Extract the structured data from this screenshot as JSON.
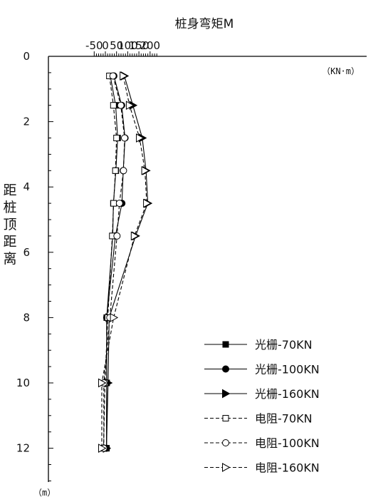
{
  "chart_data": {
    "type": "line",
    "title": "桩身弯矩M",
    "x_unit": "（KN·m）",
    "ylabel": "距桩顶距离",
    "y_unit": "（m）",
    "xlim": [
      -50,
      230
    ],
    "ylim": [
      0,
      13
    ],
    "x_ticks": [
      "-50",
      "0",
      "50",
      "100",
      "150",
      "200"
    ],
    "x_tick_values": [
      -50,
      0,
      50,
      100,
      150,
      200
    ],
    "y_ticks": [
      "0",
      "2",
      "4",
      "6",
      "8",
      "10",
      "12"
    ],
    "y_tick_values": [
      0,
      2,
      4,
      6,
      8,
      10,
      12
    ],
    "y_inverted": true,
    "series": [
      {
        "name": "光栅-70KN",
        "dash": "solid",
        "marker": "square",
        "filled": true,
        "color": "#000000",
        "points": [
          [
            22,
            0.6
          ],
          [
            46,
            1.5
          ],
          [
            55,
            2.5
          ],
          [
            47,
            3.5
          ],
          [
            36,
            4.5
          ],
          [
            33,
            5.5
          ],
          [
            6,
            8
          ],
          [
            6,
            10
          ],
          [
            5,
            12
          ]
        ]
      },
      {
        "name": "光栅-100KN",
        "dash": "solid",
        "marker": "circle",
        "filled": true,
        "color": "#000000",
        "points": [
          [
            38,
            0.6
          ],
          [
            73,
            1.5
          ],
          [
            88,
            2.5
          ],
          [
            80,
            3.5
          ],
          [
            74,
            4.5
          ],
          [
            45,
            5.5
          ],
          [
            6,
            8
          ],
          [
            6,
            10
          ],
          [
            5,
            12
          ]
        ]
      },
      {
        "name": "光栅-160KN",
        "dash": "solid",
        "marker": "triangle-right",
        "filled": true,
        "color": "#000000",
        "points": [
          [
            85,
            0.6
          ],
          [
            123,
            1.5
          ],
          [
            165,
            2.5
          ],
          [
            182,
            3.5
          ],
          [
            190,
            4.5
          ],
          [
            135,
            5.5
          ],
          [
            17,
            8
          ],
          [
            12,
            10
          ],
          [
            5,
            12
          ]
        ]
      },
      {
        "name": "电阻-70KN",
        "dash": "dashed",
        "marker": "square",
        "filled": false,
        "color": "#000000",
        "points": [
          [
            18,
            0.6
          ],
          [
            36,
            1.5
          ],
          [
            50,
            2.5
          ],
          [
            45,
            3.5
          ],
          [
            37,
            4.5
          ],
          [
            31,
            5.5
          ],
          [
            11,
            8
          ],
          [
            -2,
            10
          ],
          [
            -8,
            12
          ]
        ]
      },
      {
        "name": "电阻-100KN",
        "dash": "dashed",
        "marker": "circle",
        "filled": false,
        "color": "#000000",
        "points": [
          [
            34,
            0.6
          ],
          [
            69,
            1.5
          ],
          [
            86,
            2.5
          ],
          [
            81,
            3.5
          ],
          [
            63,
            4.5
          ],
          [
            52,
            5.5
          ],
          [
            20,
            8
          ],
          [
            -7,
            10
          ],
          [
            -7,
            12
          ]
        ]
      },
      {
        "name": "电阻-160KN",
        "dash": "dashed",
        "marker": "triangle-right",
        "filled": false,
        "color": "#000000",
        "points": [
          [
            80,
            0.6
          ],
          [
            108,
            1.5
          ],
          [
            153,
            2.5
          ],
          [
            177,
            3.5
          ],
          [
            185,
            4.5
          ],
          [
            130,
            5.5
          ],
          [
            37,
            8
          ],
          [
            -16,
            10
          ],
          [
            -16,
            12
          ]
        ]
      }
    ],
    "legend": "bottom-right",
    "grid": false
  }
}
